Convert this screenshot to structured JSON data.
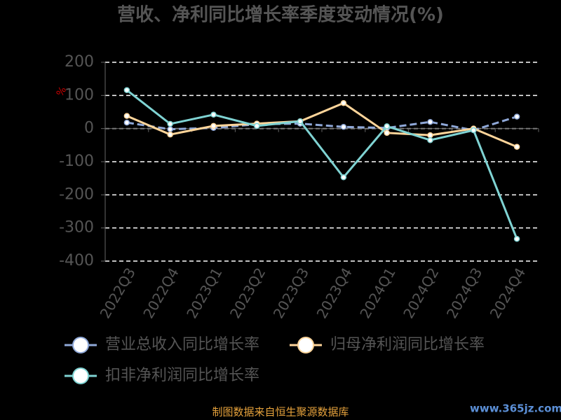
{
  "chart_data": {
    "type": "line",
    "title": "营收、净利同比增长率季度变动情况(%)",
    "y_label": "%",
    "categories": [
      "2022Q3",
      "2022Q4",
      "2023Q1",
      "2023Q2",
      "2023Q3",
      "2023Q4",
      "2024Q1",
      "2024Q2",
      "2024Q3",
      "2024Q4"
    ],
    "series": [
      {
        "name": "营业总收入同比增长率",
        "color": "#8fa8d8",
        "dashed": true,
        "values": [
          18,
          -2,
          2,
          13,
          15,
          5,
          2,
          20,
          -5,
          36
        ]
      },
      {
        "name": "归母净利润同比增长率",
        "color": "#ffd59a",
        "dashed": false,
        "values": [
          38,
          -18,
          8,
          15,
          22,
          77,
          -13,
          -20,
          0,
          -55
        ]
      },
      {
        "name": "扣非净利润同比增长率",
        "color": "#7fd3d3",
        "dashed": false,
        "values": [
          116,
          14,
          42,
          8,
          22,
          -147,
          7,
          -35,
          -5,
          -333
        ]
      }
    ],
    "ylim": [
      -400,
      200
    ],
    "yticks": [
      200,
      100,
      0,
      -100,
      -200,
      -300,
      -400
    ],
    "grid": true,
    "source": "制图数据来自恒生聚源数据库",
    "watermark": "www.365jz.com"
  }
}
